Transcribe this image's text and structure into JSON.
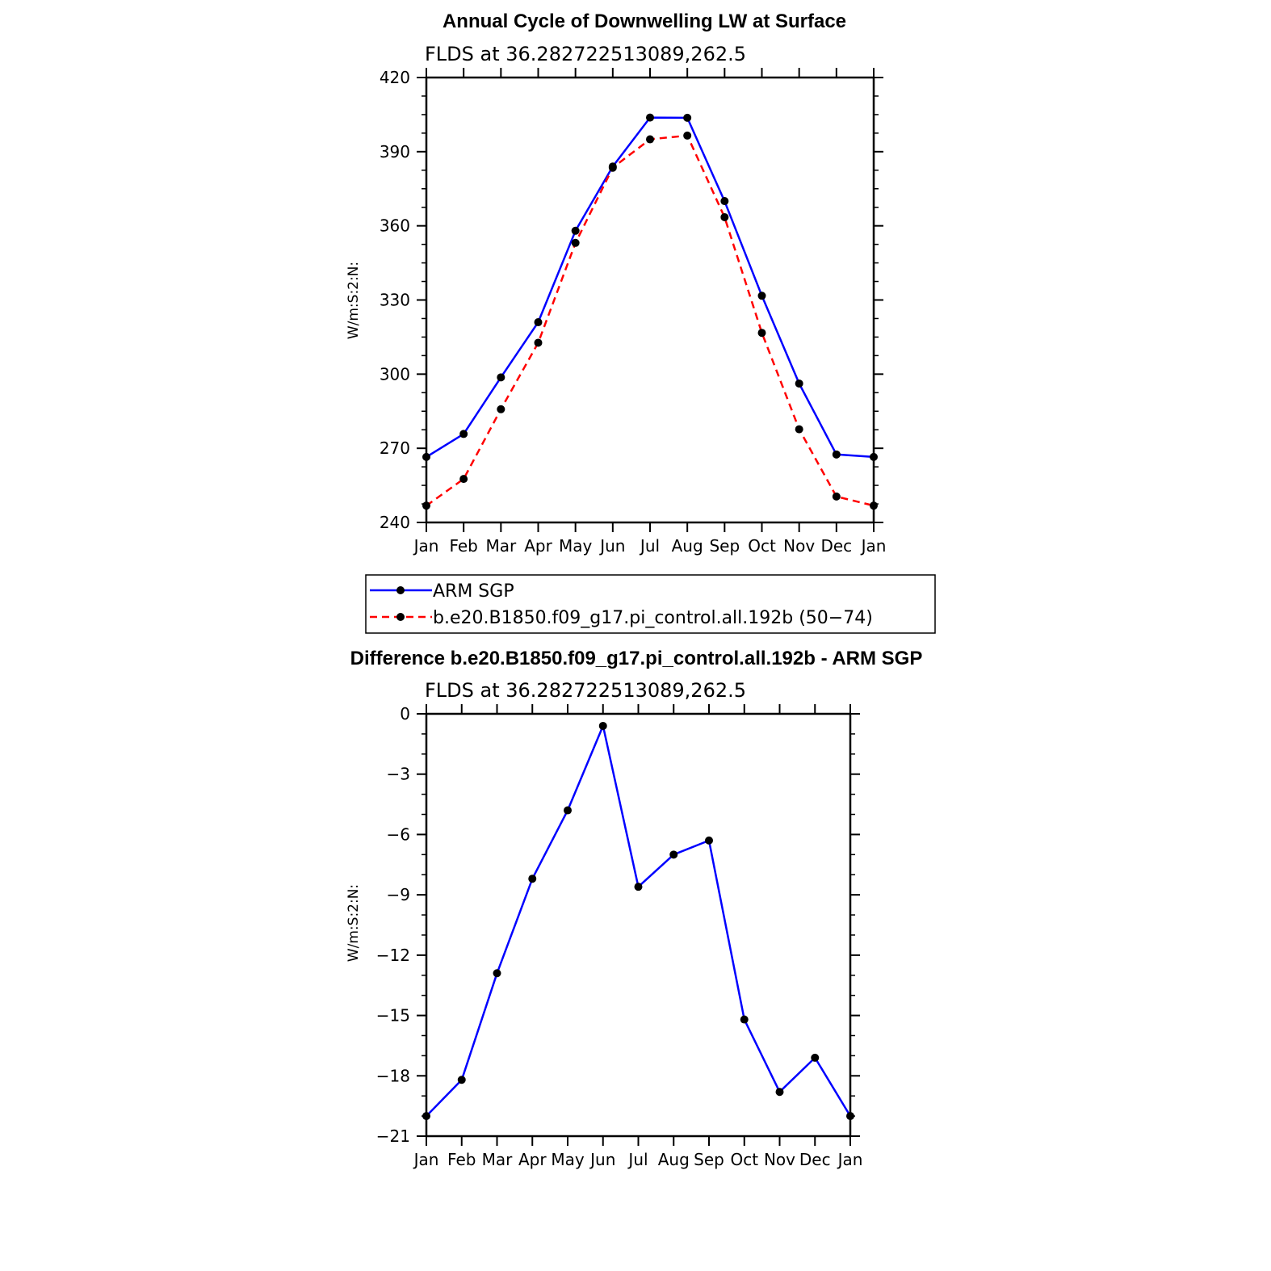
{
  "chart_data": [
    {
      "type": "line",
      "title": "Annual Cycle of Downwelling LW at Surface",
      "subtitle": "FLDS at 36.282722513089,262.5",
      "ylabel": "W/m:S:2:N:",
      "xlabel": "",
      "categories": [
        "Jan",
        "Feb",
        "Mar",
        "Apr",
        "May",
        "Jun",
        "Jul",
        "Aug",
        "Sep",
        "Oct",
        "Nov",
        "Dec",
        "Jan"
      ],
      "ylim": [
        240,
        420
      ],
      "yticks": [
        "240",
        "270",
        "300",
        "330",
        "360",
        "390",
        "420"
      ],
      "series": [
        {
          "name": "ARM SGP",
          "color": "#0000ff",
          "dash": "solid",
          "values": [
            266.5,
            275.8,
            298.7,
            321.0,
            358.0,
            384.0,
            403.8,
            403.7,
            370.0,
            331.7,
            296.2,
            267.5,
            266.5
          ]
        },
        {
          "name": "b.e20.B1850.f09_g17.pi_control.all.192b (50−74)",
          "color": "#ff0000",
          "dash": "dashed",
          "values": [
            246.8,
            257.6,
            285.8,
            312.7,
            353.1,
            383.5,
            395.0,
            396.5,
            363.5,
            316.7,
            277.7,
            250.5,
            246.8
          ]
        }
      ],
      "legend_position": "below"
    },
    {
      "type": "line",
      "title": "Difference b.e20.B1850.f09_g17.pi_control.all.192b - ARM SGP",
      "subtitle": "FLDS at 36.282722513089,262.5",
      "ylabel": "W/m:S:2:N:",
      "xlabel": "",
      "categories": [
        "Jan",
        "Feb",
        "Mar",
        "Apr",
        "May",
        "Jun",
        "Jul",
        "Aug",
        "Sep",
        "Oct",
        "Nov",
        "Dec",
        "Jan"
      ],
      "ylim": [
        -21,
        0
      ],
      "yticks": [
        "−21",
        "−18",
        "−15",
        "−12",
        "−9",
        "−6",
        "−3",
        "0"
      ],
      "series": [
        {
          "color": "#0000ff",
          "dash": "solid",
          "values": [
            -20.0,
            -18.2,
            -12.9,
            -8.2,
            -4.8,
            -0.6,
            -8.6,
            -7.0,
            -6.3,
            -15.2,
            -18.8,
            -17.1,
            -20.0
          ]
        }
      ]
    }
  ]
}
